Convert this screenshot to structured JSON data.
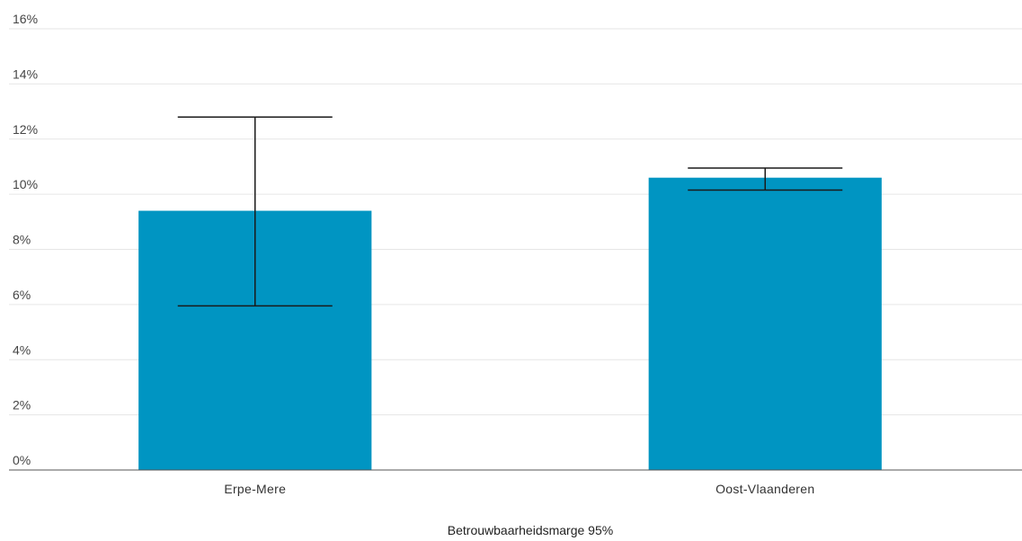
{
  "chart_data": {
    "type": "bar",
    "categories": [
      "Erpe-Mere",
      "Oost-Vlaanderen"
    ],
    "values": [
      9.4,
      10.6
    ],
    "error_low": [
      5.95,
      10.15
    ],
    "error_high": [
      12.8,
      10.95
    ],
    "ylim": [
      0,
      16
    ],
    "yticks": [
      0,
      2,
      4,
      6,
      8,
      10,
      12,
      14,
      16
    ],
    "ytick_suffix": "%",
    "grid": true,
    "bar_color": "#0095c2",
    "legend": "Betrouwbaarheidsmarge 95%"
  }
}
